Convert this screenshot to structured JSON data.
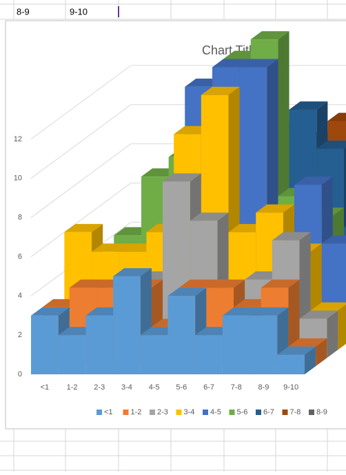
{
  "sheet": {
    "cells": [
      "8-9",
      "9-10"
    ]
  },
  "chart_data": {
    "type": "bar3d",
    "title": "Chart Title",
    "categories": [
      "<1",
      "1-2",
      "2-3",
      "3-4",
      "4-5",
      "5-6",
      "6-7",
      "7-8",
      "8-9",
      "9-10"
    ],
    "series": [
      {
        "name": "<1",
        "color": "#5b9bd5",
        "values": [
          3,
          2,
          3,
          5,
          2,
          4,
          2,
          3,
          3,
          1
        ]
      },
      {
        "name": "1-2",
        "color": "#ed7d31",
        "values": [
          3,
          4,
          4,
          4,
          2,
          4,
          4,
          3,
          4,
          1
        ]
      },
      {
        "name": "2-3",
        "color": "#a5a5a5",
        "values": [
          2,
          3,
          3,
          4,
          9,
          7,
          3,
          4,
          6,
          2
        ]
      },
      {
        "name": "3-4",
        "color": "#ffc000",
        "values": [
          6,
          5,
          5,
          6,
          11,
          13,
          6,
          7,
          5,
          2
        ]
      },
      {
        "name": "4-5",
        "color": "#4472c4",
        "values": [
          1,
          2,
          3,
          5,
          13,
          14,
          14,
          6,
          8,
          5
        ]
      },
      {
        "name": "5-6",
        "color": "#70ad47",
        "values": [
          3,
          5,
          8,
          9,
          12,
          14,
          15,
          7,
          6,
          3
        ]
      },
      {
        "name": "6-7",
        "color": "#255e91",
        "values": [
          0,
          1,
          2,
          3,
          6,
          8,
          10,
          11,
          9,
          5
        ]
      },
      {
        "name": "7-8",
        "color": "#9e480e",
        "values": [
          1,
          2,
          2,
          3,
          4,
          5,
          7,
          9,
          10,
          6
        ]
      },
      {
        "name": "8-9",
        "color": "#636363",
        "values": [
          1,
          1,
          1,
          2,
          3,
          4,
          5,
          5,
          6,
          5
        ]
      }
    ],
    "ylim": [
      0,
      14
    ],
    "yticks": [
      0,
      2,
      4,
      6,
      8,
      10,
      12
    ],
    "grid": true,
    "legend": "bottom"
  }
}
